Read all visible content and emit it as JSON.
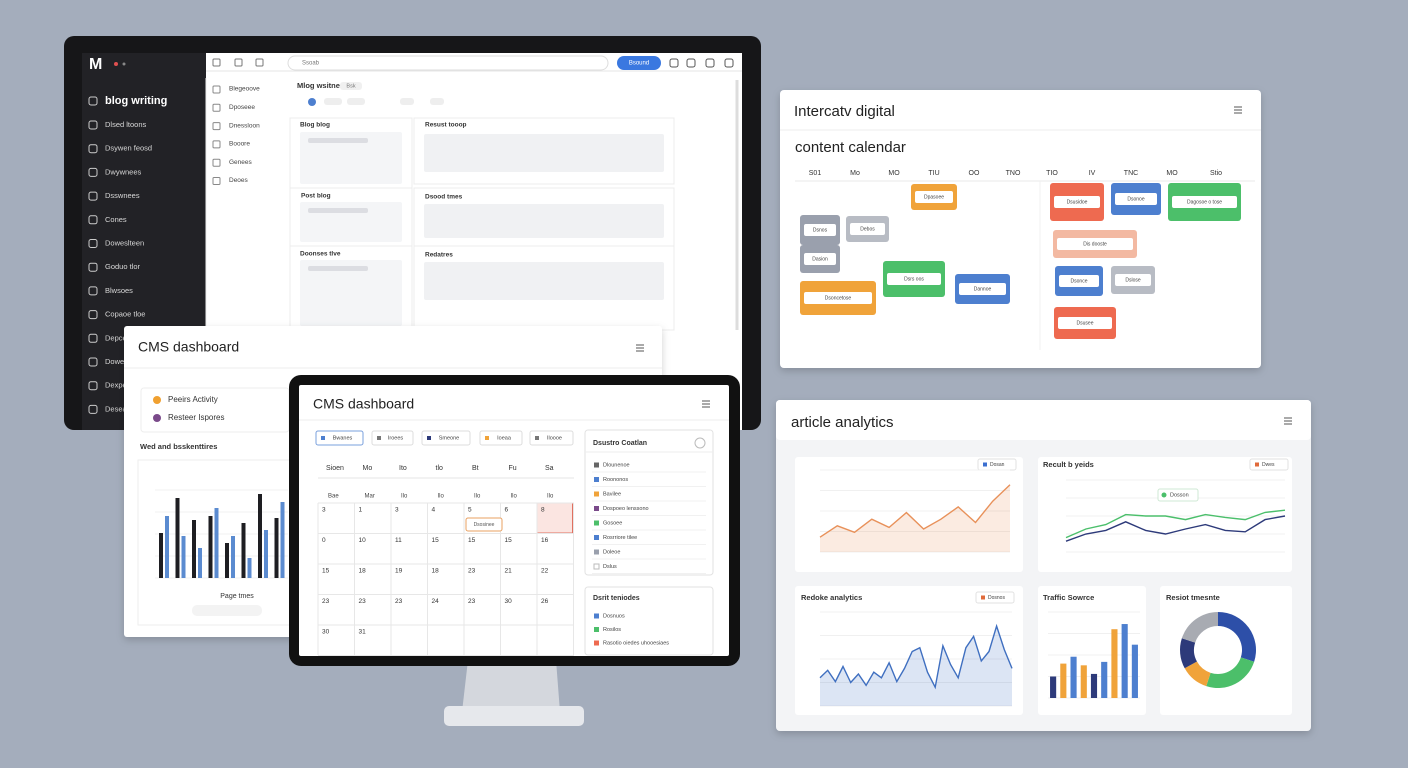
{
  "monitor": {
    "logo": "M",
    "nav": [
      "blog writing",
      "Dlsed ltoons",
      "Dsywen feosd",
      "Dwywnees",
      "Dsswnees",
      "Cones",
      "Doweslteen",
      "Goduo tlor",
      "Blwsoes",
      "Copaoe tloe",
      "Depcer",
      "Dowes",
      "Dexpe",
      "Deseae"
    ],
    "subnav": [
      "Blegeoove",
      "Dposeee",
      "Dnessloon",
      "Booore",
      "Genees",
      "Deoes"
    ],
    "search": "Ssoab",
    "button": "Bsound",
    "heading": "Mlog wsitnes",
    "heading_tag": "Bsk",
    "panels": [
      "Blog blog",
      "Resust tooop",
      "Post blog",
      "Dsood tmes",
      "Doonses tlve",
      "Redatres"
    ]
  },
  "cms_card": {
    "title": "CMS dashboard",
    "legend": [
      {
        "label": "Peeirs Activity",
        "color": "#f0a030"
      },
      {
        "label": "Resteer Ispores",
        "color": "#7a4a8a"
      }
    ],
    "chart_title": "Wed and bsskenttires",
    "x_label": "Page tmes",
    "chart": {
      "type": "bar",
      "ylim": [
        0,
        100
      ],
      "series": [
        {
          "color": "#1e1e22",
          "values": [
            45,
            80,
            58,
            62,
            35,
            55,
            84,
            60
          ]
        },
        {
          "color": "#5b8bd0",
          "values": [
            62,
            42,
            30,
            70,
            42,
            20,
            48,
            76
          ]
        }
      ]
    }
  },
  "tablet": {
    "title": "CMS dashboard",
    "tabs": [
      "Bwanes",
      "Iroees",
      "Smeone",
      "Ioeaa",
      "Iloooe"
    ],
    "weekdays": [
      "Sioen",
      "Mo",
      "Ito",
      "tlo",
      "Bt",
      "Fu",
      "Sa"
    ],
    "weekdays2": [
      "Bae",
      "Mar",
      "Ilo",
      "Ilo",
      "Ilo",
      "Ilo",
      "Ilo"
    ],
    "days": [
      [
        "3",
        "1",
        "3",
        "4",
        "5",
        "6",
        "8"
      ],
      [
        "0",
        "10",
        "11",
        "15",
        "15",
        "15",
        "16"
      ],
      [
        "15",
        "18",
        "19",
        "18",
        "23",
        "21",
        "22"
      ],
      [
        "23",
        "23",
        "23",
        "24",
        "23",
        "30",
        "26"
      ],
      [
        "30",
        "31"
      ]
    ],
    "event": "Dsosinee",
    "panel_title": "Dsustro Coatlan",
    "panel_items": [
      {
        "label": "Dlounenoe",
        "color": "#666"
      },
      {
        "label": "Roononos",
        "color": "#4d7fcf"
      },
      {
        "label": "Bavilee",
        "color": "#f0a33a"
      },
      {
        "label": "Dospoeo lenssono",
        "color": "#7a4a8a"
      },
      {
        "label": "Gosoee",
        "color": "#4cbf6a"
      },
      {
        "label": "Rosrriore tilee",
        "color": "#4d7fcf"
      },
      {
        "label": "Doleoe",
        "color": "#9aa0ad"
      },
      {
        "label": "Dslus",
        "color": "#ffffff"
      }
    ],
    "panel2_title": "Dsrit teniodes",
    "panel2_items": [
      {
        "label": "Dosnuos",
        "color": "#4d7fcf"
      },
      {
        "label": "Rosilos",
        "color": "#4cbf6a"
      },
      {
        "label": "Rasotio oiedes uhooesiaes",
        "color": "#ee6a50"
      }
    ]
  },
  "calendar_card": {
    "title": "Intercatv digital",
    "subtitle": "content calendar",
    "columns": [
      "S01",
      "Mo",
      "MO",
      "TIU",
      "OO",
      "TNO",
      "TIO",
      "IV",
      "TNC",
      "MO",
      "Stio"
    ],
    "events": [
      {
        "label": "Dpasoee",
        "color": "#f0a33a"
      },
      {
        "label": "Dsnos",
        "color": "#9aa0ad"
      },
      {
        "label": "Debos",
        "color": "#b8bcc4"
      },
      {
        "label": "Dasion",
        "color": "#9aa0ad"
      },
      {
        "label": "Dsrs oos",
        "color": "#4cbf6a"
      },
      {
        "label": "Dannoe",
        "color": "#4d7fcf"
      },
      {
        "label": "Dsoncetose",
        "color": "#f0a33a"
      },
      {
        "label": "Dsusidoe",
        "color": "#ee6a50"
      },
      {
        "label": "Dsonoe",
        "color": "#4d7fcf"
      },
      {
        "label": "Dagosoe o tose",
        "color": "#4cbf6a"
      },
      {
        "label": "Dis dooste",
        "color": "#f3b9a2"
      },
      {
        "label": "Dsonce",
        "color": "#4d7fcf"
      },
      {
        "label": "Dslose",
        "color": "#b8bcc4"
      },
      {
        "label": "Dsusee",
        "color": "#ee6a50"
      }
    ]
  },
  "analytics": {
    "title": "article analytics",
    "charts": [
      {
        "type": "area",
        "tag": "Dosan",
        "tag_color": "#3b6fd0",
        "color": "#e8915a",
        "ylim": [
          0,
          100
        ],
        "values": [
          18,
          32,
          24,
          40,
          30,
          48,
          28,
          40,
          55,
          36,
          62,
          82
        ]
      },
      {
        "type": "line",
        "title": "Recult b yeids",
        "tag": "Dwes",
        "tag_color": "#e06a3a",
        "note": "Dosson",
        "ylim": [
          0,
          100
        ],
        "series": [
          {
            "color": "#4bbf6b",
            "values": [
              20,
              32,
              38,
              52,
              50,
              50,
              45,
              52,
              48,
              45,
              55,
              58
            ]
          },
          {
            "color": "#2d3a7a",
            "values": [
              15,
              25,
              30,
              42,
              30,
              25,
              32,
              38,
              30,
              28,
              45,
              50
            ]
          }
        ]
      },
      {
        "type": "area",
        "title": "Redoke analytics",
        "tag": "Dosnos",
        "tag_color": "#e06a3a",
        "color": "#3f6fc0",
        "ylim": [
          0,
          100
        ],
        "values": [
          30,
          38,
          26,
          42,
          25,
          34,
          22,
          36,
          30,
          46,
          26,
          40,
          58,
          62,
          36,
          20,
          64,
          44,
          30,
          62,
          74,
          48,
          58,
          85,
          60,
          40
        ]
      },
      {
        "type": "bar",
        "title": "Traffic Sowrce",
        "ylim": [
          0,
          100
        ],
        "values": [
          25,
          40,
          48,
          38,
          28,
          42,
          80,
          86,
          62
        ],
        "colors": [
          "#2d3a7a",
          "#f0a33a",
          "#4d7fcf",
          "#f0a33a",
          "#2d3a7a",
          "#4d7fcf",
          "#f0a33a",
          "#4d7fcf",
          "#4d7fcf"
        ]
      },
      {
        "type": "pie",
        "title": "Resiot tmesnte",
        "values": [
          30,
          25,
          12,
          13,
          20
        ],
        "colors": [
          "#2d4fa8",
          "#4cbf6a",
          "#f0a33a",
          "#2d3a7a",
          "#a8abb2"
        ]
      }
    ]
  }
}
